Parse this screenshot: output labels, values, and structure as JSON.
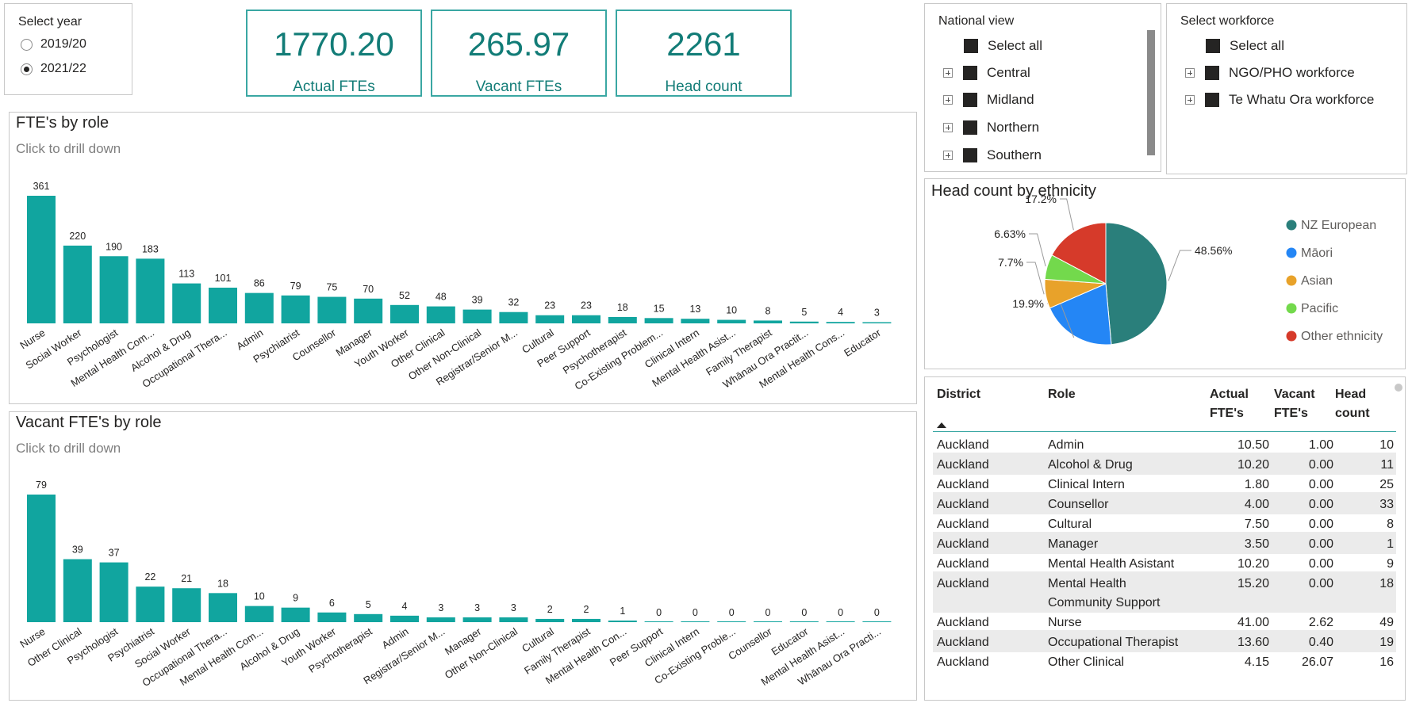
{
  "year_slicer": {
    "title": "Select year",
    "options": [
      {
        "label": "2019/20",
        "selected": false
      },
      {
        "label": "2021/22",
        "selected": true
      }
    ]
  },
  "kpis": [
    {
      "value": "1770.20",
      "label": "Actual FTEs"
    },
    {
      "value": "265.97",
      "label": "Vacant FTEs"
    },
    {
      "value": "2261",
      "label": "Head count"
    }
  ],
  "national_view": {
    "title": "National view",
    "items": [
      {
        "label": "Select all",
        "expandable": false
      },
      {
        "label": "Central",
        "expandable": true
      },
      {
        "label": "Midland",
        "expandable": true
      },
      {
        "label": "Northern",
        "expandable": true
      },
      {
        "label": "Southern",
        "expandable": true
      }
    ]
  },
  "workforce": {
    "title": "Select workforce",
    "items": [
      {
        "label": "Select all",
        "expandable": false
      },
      {
        "label": "NGO/PHO workforce",
        "expandable": true
      },
      {
        "label": "Te Whatu Ora workforce",
        "expandable": true
      }
    ]
  },
  "colors": {
    "bar": "#11a59f",
    "kpi": "#127c77",
    "pie": [
      "#2a7f7b",
      "#2486f5",
      "#e8a22a",
      "#73d94c",
      "#d63a2a"
    ]
  },
  "chart_data": [
    {
      "type": "bar",
      "title": "FTE's by role",
      "subtitle": "Click to drill down",
      "categories": [
        "Nurse",
        "Social Worker",
        "Psychologist",
        "Mental Health Com...",
        "Alcohol & Drug",
        "Occupational Thera...",
        "Admin",
        "Psychiatrist",
        "Counsellor",
        "Manager",
        "Youth Worker",
        "Other Clinical",
        "Other Non-Clinical",
        "Registrar/Senior M...",
        "Cultural",
        "Peer Support",
        "Psychotherapist",
        "Co-Existing Problem...",
        "Clinical Intern",
        "Mental Health Asist...",
        "Family Therapist",
        "Whānau Ora Practit...",
        "Mental Health Cons...",
        "Educator"
      ],
      "values": [
        361,
        220,
        190,
        183,
        113,
        101,
        86,
        79,
        75,
        70,
        52,
        48,
        39,
        32,
        23,
        23,
        18,
        15,
        13,
        10,
        8,
        5,
        4,
        3
      ],
      "ylim": [
        0,
        361
      ]
    },
    {
      "type": "bar",
      "title": "Vacant FTE's by role",
      "subtitle": "Click to drill down",
      "categories": [
        "Nurse",
        "Other Clinical",
        "Psychologist",
        "Psychiatrist",
        "Social Worker",
        "Occupational Thera...",
        "Mental Health Com...",
        "Alcohol & Drug",
        "Youth Worker",
        "Psychotherapist",
        "Admin",
        "Registrar/Senior M...",
        "Manager",
        "Other Non-Clinical",
        "Cultural",
        "Family Therapist",
        "Mental Health Con...",
        "Peer Support",
        "Clinical Intern",
        "Co-Existing Proble...",
        "Counsellor",
        "Educator",
        "Mental Health Asist...",
        "Whānau Ora Practi..."
      ],
      "values": [
        79,
        39,
        37,
        22,
        21,
        18,
        10,
        9,
        6,
        5,
        4,
        3,
        3,
        3,
        2,
        2,
        1,
        0,
        0,
        0,
        0,
        0,
        0,
        0
      ],
      "ylim": [
        0,
        79
      ]
    },
    {
      "type": "pie",
      "title": "Head count by ethnicity",
      "labels": [
        "NZ European",
        "Māori",
        "Asian",
        "Pacific",
        "Other ethnicity"
      ],
      "values": [
        48.56,
        19.9,
        7.7,
        6.63,
        17.2
      ],
      "value_labels": [
        "48.56%",
        "19.9%",
        "7.7%",
        "6.63%",
        "17.2%"
      ],
      "legend": "right"
    }
  ],
  "table": {
    "headers": {
      "district": "District",
      "role": "Role",
      "actual": [
        "Actual",
        "FTE's"
      ],
      "vacant": [
        "Vacant",
        "FTE's"
      ],
      "head": [
        "Head",
        "count"
      ]
    },
    "rows": [
      {
        "district": "Auckland",
        "role": [
          "Admin"
        ],
        "actual": "10.50",
        "vacant": "1.00",
        "head": "10"
      },
      {
        "district": "Auckland",
        "role": [
          "Alcohol & Drug"
        ],
        "actual": "10.20",
        "vacant": "0.00",
        "head": "11"
      },
      {
        "district": "Auckland",
        "role": [
          "Clinical Intern"
        ],
        "actual": "1.80",
        "vacant": "0.00",
        "head": "25"
      },
      {
        "district": "Auckland",
        "role": [
          "Counsellor"
        ],
        "actual": "4.00",
        "vacant": "0.00",
        "head": "33"
      },
      {
        "district": "Auckland",
        "role": [
          "Cultural"
        ],
        "actual": "7.50",
        "vacant": "0.00",
        "head": "8"
      },
      {
        "district": "Auckland",
        "role": [
          "Manager"
        ],
        "actual": "3.50",
        "vacant": "0.00",
        "head": "1"
      },
      {
        "district": "Auckland",
        "role": [
          "Mental Health Asistant"
        ],
        "actual": "10.20",
        "vacant": "0.00",
        "head": "9"
      },
      {
        "district": "Auckland",
        "role": [
          "Mental Health",
          "Community Support"
        ],
        "actual": "15.20",
        "vacant": "0.00",
        "head": "18"
      },
      {
        "district": "Auckland",
        "role": [
          "Nurse"
        ],
        "actual": "41.00",
        "vacant": "2.62",
        "head": "49"
      },
      {
        "district": "Auckland",
        "role": [
          "Occupational Therapist"
        ],
        "actual": "13.60",
        "vacant": "0.40",
        "head": "19"
      },
      {
        "district": "Auckland",
        "role": [
          "Other Clinical"
        ],
        "actual": "4.15",
        "vacant": "26.07",
        "head": "16"
      }
    ]
  }
}
